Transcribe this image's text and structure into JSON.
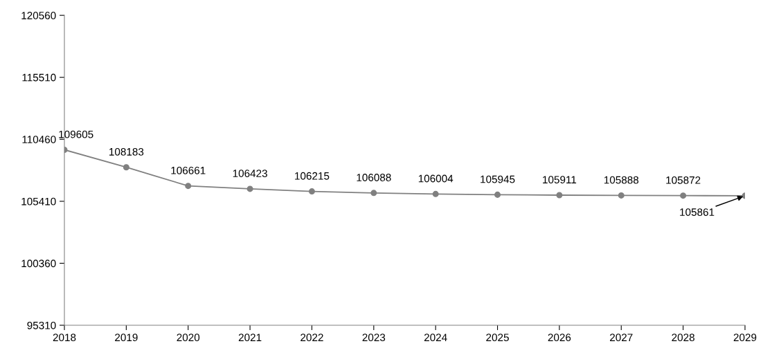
{
  "chart_data": {
    "type": "line",
    "x": [
      2018,
      2019,
      2020,
      2021,
      2022,
      2023,
      2024,
      2025,
      2026,
      2027,
      2028,
      2029
    ],
    "series": [
      {
        "color": "#808080",
        "values": [
          109605,
          108183,
          106661,
          106423,
          106215,
          106088,
          106004,
          105945,
          105911,
          105888,
          105872,
          105861
        ]
      }
    ],
    "xlim": [
      2018,
      2029
    ],
    "xticks": [
      2018,
      2019,
      2020,
      2021,
      2022,
      2023,
      2024,
      2025,
      2026,
      2027,
      2028,
      2029
    ],
    "ylim": [
      95310,
      120560
    ],
    "yticks": [
      95310,
      100360,
      105410,
      110460,
      115510,
      120560
    ],
    "marker": "circle",
    "line_style": "solid",
    "grid": false,
    "legend": false,
    "data_labels": true
  }
}
